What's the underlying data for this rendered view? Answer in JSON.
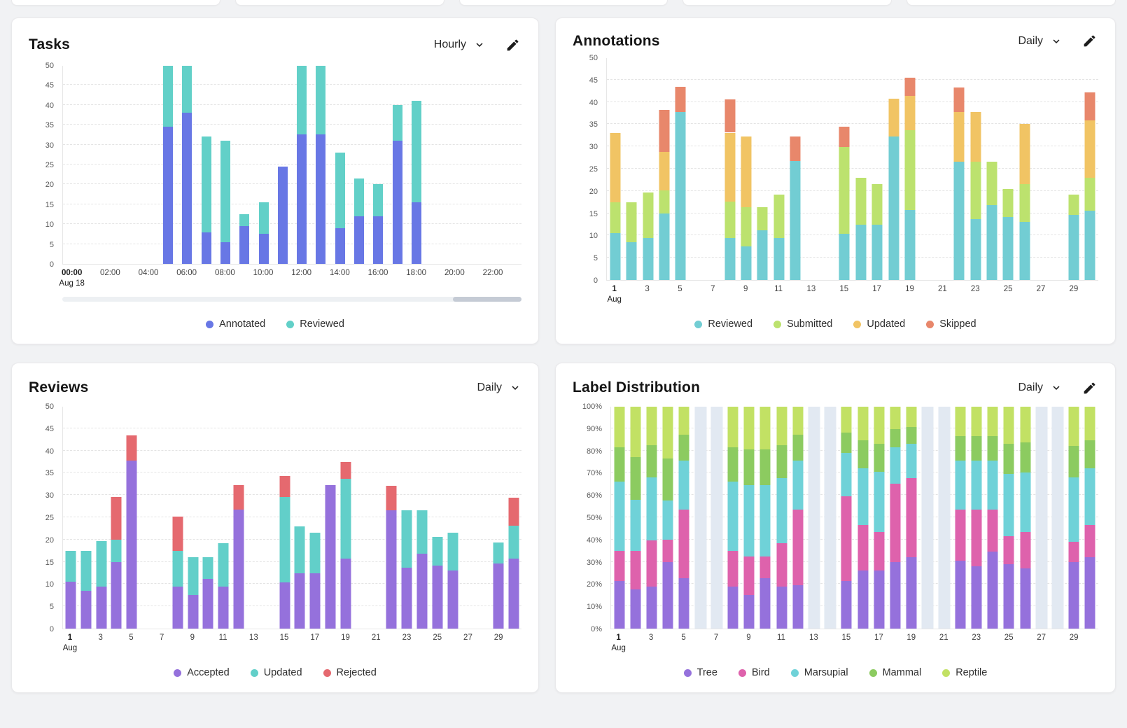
{
  "page": {
    "background_color": "#f1f2f4",
    "card_color": "#ffffff",
    "top_partial_cards_count": 5
  },
  "icons": {
    "dropdown": "chevron-down",
    "edit": "pencil"
  },
  "chart_data": [
    {
      "id": "tasks",
      "type": "stacked_bar",
      "title": "Tasks",
      "interval": "Hourly",
      "has_edit_button": true,
      "has_scrollbar": true,
      "legend_position": "bottom-center",
      "grid": "horizontal-dashed",
      "y_axis": {
        "min": 0,
        "max": 50,
        "step": 5,
        "suffix": ""
      },
      "x_axis": {
        "slots": 24,
        "ticks": [
          {
            "slot": 0,
            "label": "00:00",
            "sub": "Aug 18"
          },
          {
            "slot": 2,
            "label": "02:00"
          },
          {
            "slot": 4,
            "label": "04:00"
          },
          {
            "slot": 6,
            "label": "06:00"
          },
          {
            "slot": 8,
            "label": "08:00"
          },
          {
            "slot": 10,
            "label": "10:00"
          },
          {
            "slot": 12,
            "label": "12:00"
          },
          {
            "slot": 14,
            "label": "14:00"
          },
          {
            "slot": 16,
            "label": "16:00"
          },
          {
            "slot": 18,
            "label": "18:00"
          },
          {
            "slot": 20,
            "label": "20:00"
          },
          {
            "slot": 22,
            "label": "22:00"
          }
        ]
      },
      "series": [
        {
          "name": "Annotated",
          "color": "#6877E5",
          "values": [
            0,
            0,
            0,
            0,
            0,
            34.5,
            38,
            8,
            5.5,
            9.5,
            7.5,
            24.5,
            32.5,
            32.5,
            9,
            12,
            12,
            31,
            15.5,
            0,
            0,
            0,
            0,
            0
          ]
        },
        {
          "name": "Reviewed",
          "color": "#62D0C8",
          "values": [
            0,
            0,
            0,
            0,
            0,
            16,
            12.5,
            24,
            25.5,
            3,
            8,
            0,
            18,
            18,
            19,
            9.5,
            8,
            9,
            25.5,
            0,
            0,
            0,
            0,
            0
          ]
        }
      ]
    },
    {
      "id": "annotations",
      "type": "stacked_bar",
      "title": "Annotations",
      "interval": "Daily",
      "has_edit_button": true,
      "has_scrollbar": false,
      "legend_position": "bottom-center",
      "grid": "horizontal-dashed",
      "y_axis": {
        "min": 0,
        "max": 50,
        "step": 5,
        "suffix": ""
      },
      "x_axis": {
        "slots": 30,
        "ticks": [
          {
            "slot": 0,
            "label": "1",
            "sub": "Aug"
          },
          {
            "slot": 2,
            "label": "3"
          },
          {
            "slot": 4,
            "label": "5"
          },
          {
            "slot": 6,
            "label": "7"
          },
          {
            "slot": 8,
            "label": "9"
          },
          {
            "slot": 10,
            "label": "11"
          },
          {
            "slot": 12,
            "label": "13"
          },
          {
            "slot": 14,
            "label": "15"
          },
          {
            "slot": 16,
            "label": "17"
          },
          {
            "slot": 18,
            "label": "19"
          },
          {
            "slot": 20,
            "label": "21"
          },
          {
            "slot": 22,
            "label": "23"
          },
          {
            "slot": 24,
            "label": "25"
          },
          {
            "slot": 26,
            "label": "27"
          },
          {
            "slot": 28,
            "label": "29"
          }
        ]
      },
      "series": [
        {
          "name": "Reviewed",
          "color": "#72CDD3",
          "values": [
            10.5,
            8.5,
            9.4,
            15,
            37.8,
            0,
            0,
            9.5,
            7.6,
            11.2,
            9.4,
            26.8,
            0,
            0,
            10.4,
            12.4,
            12.4,
            32.2,
            15.7,
            0,
            0,
            26.5,
            13.7,
            16.9,
            14.1,
            13,
            0,
            0,
            14.6,
            15.6
          ]
        },
        {
          "name": "Submitted",
          "color": "#BCE26E",
          "values": [
            7,
            9,
            10.3,
            5.1,
            0,
            0,
            0,
            8.1,
            8.7,
            5.1,
            9.8,
            0,
            0,
            0,
            19.4,
            10.6,
            9.1,
            0,
            18,
            0,
            0,
            0,
            12.8,
            9.7,
            6.3,
            8.5,
            0,
            0,
            4.6,
            7.4
          ]
        },
        {
          "name": "Updated",
          "color": "#F1C464",
          "values": [
            15.5,
            0,
            0,
            8.6,
            0,
            0,
            0,
            15.5,
            16,
            0,
            0,
            0,
            0,
            0,
            0,
            0,
            0,
            8.5,
            7.7,
            0,
            0,
            11.2,
            11.2,
            0,
            0,
            13.6,
            0,
            0,
            0,
            12.8
          ]
        },
        {
          "name": "Skipped",
          "color": "#E8876B",
          "values": [
            0,
            0,
            0,
            9.5,
            5.6,
            0,
            0,
            7.5,
            0,
            0,
            0,
            5.5,
            0,
            0,
            4.6,
            0,
            0,
            0,
            4,
            0,
            0,
            5.5,
            0,
            0,
            0,
            0,
            0,
            0,
            0,
            6.4
          ]
        }
      ]
    },
    {
      "id": "reviews",
      "type": "stacked_bar",
      "title": "Reviews",
      "interval": "Daily",
      "has_edit_button": false,
      "has_scrollbar": false,
      "legend_position": "bottom-center",
      "grid": "horizontal-dashed",
      "y_axis": {
        "min": 0,
        "max": 50,
        "step": 5,
        "suffix": ""
      },
      "x_axis": {
        "slots": 30,
        "ticks": [
          {
            "slot": 0,
            "label": "1",
            "sub": "Aug"
          },
          {
            "slot": 2,
            "label": "3"
          },
          {
            "slot": 4,
            "label": "5"
          },
          {
            "slot": 6,
            "label": "7"
          },
          {
            "slot": 8,
            "label": "9"
          },
          {
            "slot": 10,
            "label": "11"
          },
          {
            "slot": 12,
            "label": "13"
          },
          {
            "slot": 14,
            "label": "15"
          },
          {
            "slot": 16,
            "label": "17"
          },
          {
            "slot": 18,
            "label": "19"
          },
          {
            "slot": 20,
            "label": "21"
          },
          {
            "slot": 22,
            "label": "23"
          },
          {
            "slot": 24,
            "label": "25"
          },
          {
            "slot": 26,
            "label": "27"
          },
          {
            "slot": 28,
            "label": "29"
          }
        ]
      },
      "series": [
        {
          "name": "Accepted",
          "color": "#9571DC",
          "values": [
            10.5,
            8.5,
            9.4,
            14.9,
            37.8,
            0,
            0,
            9.4,
            7.5,
            11.1,
            9.4,
            26.7,
            0,
            0,
            10.4,
            12.5,
            12.5,
            32.2,
            15.7,
            0,
            0,
            26.5,
            13.7,
            16.9,
            14.1,
            13.1,
            0,
            0,
            14.7,
            15.7
          ]
        },
        {
          "name": "Updated",
          "color": "#62CFC9",
          "values": [
            7,
            9,
            10.2,
            5.1,
            0,
            0,
            0,
            8.1,
            8.6,
            5,
            9.8,
            0,
            0,
            0,
            19.2,
            10.5,
            9.1,
            0,
            17.9,
            0,
            0,
            0,
            12.8,
            9.6,
            6.5,
            8.5,
            0,
            0,
            4.6,
            7.4
          ]
        },
        {
          "name": "Rejected",
          "color": "#E5696F",
          "values": [
            0,
            0,
            0,
            9.5,
            5.6,
            0,
            0,
            7.7,
            0,
            0,
            0,
            5.6,
            0,
            0,
            4.7,
            0,
            0,
            0,
            3.8,
            0,
            0,
            5.6,
            0,
            0,
            0,
            0,
            0,
            0,
            0,
            6.3
          ]
        }
      ]
    },
    {
      "id": "label_distribution",
      "type": "percent_stacked_bar",
      "title": "Label Distribution",
      "interval": "Daily",
      "has_edit_button": true,
      "has_scrollbar": false,
      "legend_position": "bottom-center",
      "grid": "horizontal-dashed",
      "empty_slots": [
        5,
        6,
        12,
        13,
        19,
        20,
        26,
        27
      ],
      "empty_color": "#E2E9F2",
      "y_axis": {
        "min": 0,
        "max": 100,
        "step": 10,
        "suffix": "%"
      },
      "x_axis": {
        "slots": 30,
        "ticks": [
          {
            "slot": 0,
            "label": "1",
            "sub": "Aug"
          },
          {
            "slot": 2,
            "label": "3"
          },
          {
            "slot": 4,
            "label": "5"
          },
          {
            "slot": 6,
            "label": "7"
          },
          {
            "slot": 8,
            "label": "9"
          },
          {
            "slot": 10,
            "label": "11"
          },
          {
            "slot": 12,
            "label": "13"
          },
          {
            "slot": 14,
            "label": "15"
          },
          {
            "slot": 16,
            "label": "17"
          },
          {
            "slot": 18,
            "label": "19"
          },
          {
            "slot": 20,
            "label": "21"
          },
          {
            "slot": 22,
            "label": "23"
          },
          {
            "slot": 24,
            "label": "25"
          },
          {
            "slot": 26,
            "label": "27"
          },
          {
            "slot": 28,
            "label": "29"
          }
        ]
      },
      "series": [
        {
          "name": "Tree",
          "color": "#9571DC",
          "values": [
            21.5,
            17.5,
            19,
            30,
            22.5,
            0,
            0,
            19,
            15,
            22.5,
            19,
            19.5,
            0,
            0,
            21.5,
            26,
            26,
            30,
            32,
            0,
            0,
            30.5,
            28,
            34.5,
            29,
            27,
            0,
            0,
            30,
            32
          ]
        },
        {
          "name": "Bird",
          "color": "#DE62AC",
          "values": [
            13.5,
            17.5,
            20.5,
            10,
            31,
            0,
            0,
            16,
            17.5,
            10,
            19.5,
            34,
            0,
            0,
            38,
            20.5,
            17.5,
            35,
            35.5,
            0,
            0,
            23,
            25.5,
            19,
            12.5,
            16.5,
            0,
            0,
            9,
            14.5
          ]
        },
        {
          "name": "Marsupial",
          "color": "#6FD2D8",
          "values": [
            31,
            23,
            28.5,
            17.5,
            22,
            0,
            0,
            31,
            32,
            32,
            29,
            22,
            0,
            0,
            19.5,
            25.5,
            27,
            16.5,
            15.5,
            0,
            0,
            22,
            22,
            22,
            28,
            26.5,
            0,
            0,
            29,
            25.5
          ]
        },
        {
          "name": "Mammal",
          "color": "#8CCB60",
          "values": [
            15.5,
            19,
            14.5,
            19,
            11.5,
            0,
            0,
            15.5,
            16,
            16,
            15,
            11.5,
            0,
            0,
            9,
            12.5,
            12.5,
            8,
            7.5,
            0,
            0,
            11,
            11,
            11,
            13.5,
            13.5,
            0,
            0,
            14,
            12.5
          ]
        },
        {
          "name": "Reptile",
          "color": "#C2E164",
          "values": [
            18.5,
            23,
            17.5,
            23.5,
            13,
            0,
            0,
            18.5,
            19.5,
            19.5,
            17.5,
            13,
            0,
            0,
            12,
            15.5,
            17,
            10.5,
            9.5,
            0,
            0,
            13.5,
            13.5,
            13.5,
            17,
            16.5,
            0,
            0,
            18,
            15.5
          ]
        }
      ]
    }
  ]
}
